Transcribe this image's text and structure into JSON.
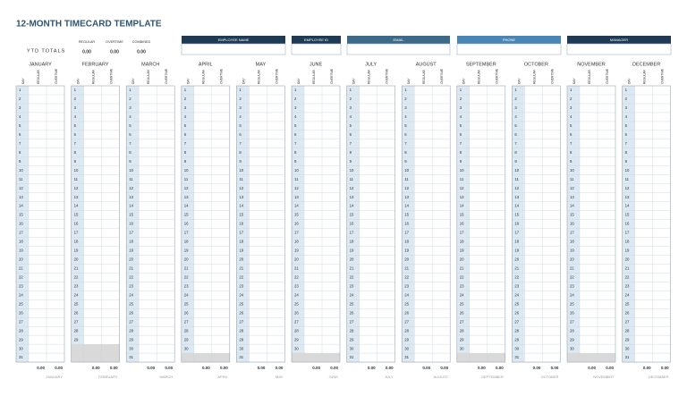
{
  "title": "12-MONTH TIMECARD TEMPLATE",
  "ytd": {
    "label": "YTD TOTALS",
    "headers": [
      "REGULAR",
      "OVERTIME",
      "COMBINED"
    ],
    "values": [
      "0.00",
      "0.00",
      "0.00"
    ]
  },
  "info_headers": [
    "EMPLOYEE NAME",
    "EMPLOYEE ID",
    "EMAIL",
    "PHONE",
    "MANAGER"
  ],
  "column_headers": [
    "DAY",
    "REGULAR",
    "OVERTIME"
  ],
  "months": [
    {
      "name": "JANUARY",
      "days": [
        1,
        2,
        3,
        4,
        5,
        6,
        7,
        8,
        9,
        10,
        11,
        12,
        13,
        14,
        15,
        16,
        17,
        18,
        19,
        20,
        21,
        22,
        23,
        24,
        25,
        26,
        27,
        28,
        29,
        30,
        31
      ],
      "totals": [
        "0.00",
        "0.00"
      ]
    },
    {
      "name": "FEBRUARY",
      "days": [
        1,
        2,
        3,
        4,
        5,
        6,
        7,
        8,
        9,
        10,
        11,
        12,
        13,
        14,
        15,
        16,
        17,
        18,
        19,
        20,
        21,
        22,
        23,
        24,
        25,
        26,
        27,
        28,
        29
      ],
      "totals": [
        "0.00",
        "0.00"
      ]
    },
    {
      "name": "MARCH",
      "days": [
        1,
        2,
        3,
        4,
        5,
        6,
        7,
        8,
        9,
        10,
        11,
        12,
        13,
        14,
        15,
        16,
        17,
        18,
        19,
        20,
        21,
        22,
        23,
        24,
        25,
        26,
        27,
        28,
        29,
        30,
        31
      ],
      "totals": [
        "0.00",
        "0.00"
      ]
    },
    {
      "name": "APRIL",
      "days": [
        1,
        2,
        3,
        4,
        5,
        6,
        7,
        8,
        9,
        10,
        11,
        12,
        13,
        14,
        15,
        16,
        17,
        18,
        19,
        20,
        21,
        22,
        23,
        24,
        25,
        26,
        27,
        28,
        29,
        30
      ],
      "totals": [
        "0.00",
        "0.00"
      ]
    },
    {
      "name": "MAY",
      "days": [
        1,
        2,
        3,
        4,
        5,
        6,
        7,
        8,
        9,
        10,
        11,
        12,
        13,
        14,
        15,
        16,
        17,
        18,
        19,
        20,
        21,
        22,
        23,
        24,
        25,
        26,
        27,
        28,
        29,
        30,
        31
      ],
      "totals": [
        "0.00",
        "0.00"
      ]
    },
    {
      "name": "JUNE",
      "days": [
        1,
        2,
        3,
        4,
        5,
        6,
        7,
        8,
        9,
        10,
        11,
        12,
        13,
        14,
        15,
        16,
        17,
        18,
        19,
        20,
        21,
        22,
        23,
        24,
        25,
        26,
        27,
        28,
        29,
        30
      ],
      "totals": [
        "0.00",
        "0.00"
      ]
    },
    {
      "name": "JULY",
      "days": [
        1,
        2,
        3,
        4,
        5,
        6,
        7,
        8,
        9,
        10,
        11,
        12,
        13,
        14,
        15,
        16,
        17,
        18,
        19,
        20,
        21,
        22,
        23,
        24,
        25,
        26,
        27,
        28,
        29,
        30,
        31
      ],
      "totals": [
        "0.00",
        "0.00"
      ]
    },
    {
      "name": "AUGUST",
      "days": [
        1,
        2,
        3,
        4,
        5,
        6,
        7,
        8,
        9,
        10,
        11,
        12,
        13,
        14,
        15,
        16,
        17,
        18,
        19,
        20,
        21,
        22,
        23,
        24,
        25,
        26,
        27,
        28,
        29,
        30,
        31
      ],
      "totals": [
        "0.00",
        "0.00"
      ]
    },
    {
      "name": "SEPTEMBER",
      "days": [
        1,
        2,
        3,
        4,
        5,
        6,
        7,
        8,
        9,
        10,
        11,
        12,
        13,
        14,
        15,
        16,
        17,
        18,
        19,
        20,
        21,
        22,
        23,
        24,
        25,
        26,
        27,
        28,
        29,
        30
      ],
      "totals": [
        "0.00",
        "0.00"
      ]
    },
    {
      "name": "OCTOBER",
      "days": [
        1,
        2,
        3,
        4,
        5,
        6,
        7,
        8,
        9,
        10,
        11,
        12,
        13,
        14,
        15,
        16,
        17,
        18,
        19,
        20,
        21,
        22,
        23,
        24,
        25,
        26,
        27,
        28,
        29,
        30,
        31
      ],
      "totals": [
        "0.00",
        "0.00"
      ]
    },
    {
      "name": "NOVEMBER",
      "days": [
        1,
        2,
        3,
        4,
        5,
        6,
        7,
        8,
        9,
        10,
        11,
        12,
        13,
        14,
        15,
        16,
        17,
        18,
        19,
        20,
        21,
        22,
        23,
        24,
        25,
        26,
        27,
        28,
        29,
        30
      ],
      "totals": [
        "0.00",
        "0.00"
      ]
    },
    {
      "name": "DECEMBER",
      "days": [
        1,
        2,
        3,
        4,
        5,
        6,
        7,
        8,
        9,
        10,
        11,
        12,
        13,
        14,
        15,
        16,
        17,
        18,
        19,
        20,
        21,
        22,
        23,
        24,
        25,
        26,
        27,
        28,
        29,
        30,
        31
      ],
      "totals": [
        "0.00",
        "0.00"
      ]
    }
  ]
}
